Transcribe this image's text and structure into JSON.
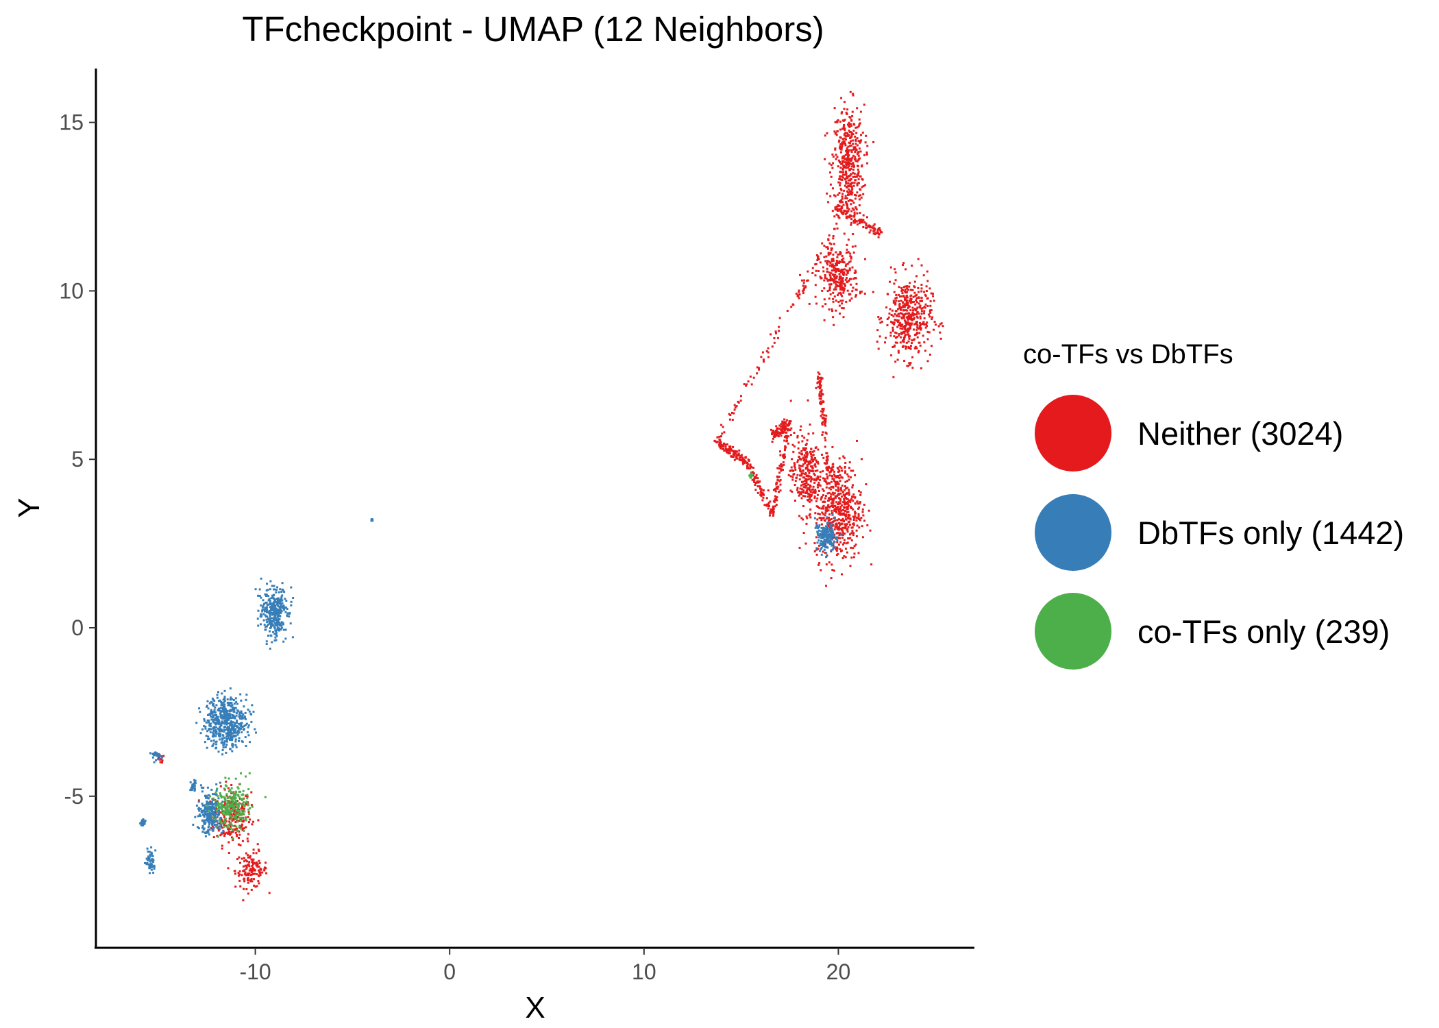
{
  "chart_data": {
    "type": "scatter",
    "title": "TFcheckpoint - UMAP (12 Neighbors)",
    "xlabel": "X",
    "ylabel": "Y",
    "xlim": [
      -18.2,
      27.0
    ],
    "ylim": [
      -9.5,
      16.6
    ],
    "xticks": [
      -10,
      0,
      10,
      20
    ],
    "yticks": [
      -5,
      0,
      5,
      10,
      15
    ],
    "xtick_labels": [
      "-10",
      "0",
      "10",
      "20"
    ],
    "ytick_labels": [
      "-5",
      "0",
      "5",
      "10",
      "15"
    ],
    "grid": false,
    "legend": {
      "title": "co-TFs vs DbTFs",
      "position": "right",
      "entries": [
        "Neither (3024)",
        "DbTFs only (1442)",
        "co-TFs only (239)"
      ]
    },
    "series": [
      {
        "name": "Neither (3024)",
        "color": "#e41a1c",
        "count": 3024,
        "clusters": [
          {
            "center": [
              -11.2,
              -5.6
            ],
            "spread": [
              0.65,
              0.55
            ]
          },
          {
            "center": [
              -10.2,
              -7.2
            ],
            "spread": [
              0.55,
              0.35
            ]
          },
          {
            "center": [
              -14.9,
              -3.9
            ],
            "spread": [
              0.15,
              0.08
            ]
          },
          {
            "center": [
              20.5,
              13.7
            ],
            "spread": [
              0.55,
              1.2
            ]
          },
          {
            "center": [
              20.0,
              10.4
            ],
            "spread": [
              0.7,
              0.6
            ]
          },
          {
            "center": [
              23.6,
              9.2
            ],
            "spread": [
              0.8,
              0.8
            ]
          },
          {
            "center": [
              20.0,
              3.5
            ],
            "spread": [
              0.8,
              1.0
            ]
          },
          {
            "center": [
              18.3,
              4.6
            ],
            "spread": [
              0.5,
              0.8
            ]
          }
        ],
        "curves": [
          {
            "from": [
              13.7,
              5.5
            ],
            "to": [
              15.2,
              5.0
            ]
          },
          {
            "from": [
              15.2,
              5.0
            ],
            "to": [
              16.6,
              3.4
            ]
          },
          {
            "from": [
              16.6,
              3.4
            ],
            "to": [
              17.5,
              6.1
            ]
          },
          {
            "from": [
              17.5,
              6.1
            ],
            "to": [
              16.6,
              5.7
            ]
          },
          {
            "from": [
              13.7,
              5.5
            ],
            "to": [
              20.0,
              12.0
            ]
          },
          {
            "from": [
              19.0,
              7.6
            ],
            "to": [
              19.5,
              4.5
            ]
          },
          {
            "from": [
              19.8,
              12.5
            ],
            "to": [
              22.2,
              11.7
            ]
          }
        ]
      },
      {
        "name": "DbTFs only (1442)",
        "color": "#377eb8",
        "count": 1442,
        "clusters": [
          {
            "center": [
              -9.0,
              0.4
            ],
            "spread": [
              0.45,
              0.5
            ]
          },
          {
            "center": [
              -11.5,
              -2.8
            ],
            "spread": [
              0.7,
              0.5
            ]
          },
          {
            "center": [
              -15.4,
              -6.9
            ],
            "spread": [
              0.15,
              0.25
            ]
          },
          {
            "center": [
              -15.8,
              -5.8
            ],
            "spread": [
              0.08,
              0.06
            ]
          },
          {
            "center": [
              -12.3,
              -5.5
            ],
            "spread": [
              0.4,
              0.4
            ]
          },
          {
            "center": [
              -15.1,
              -3.8
            ],
            "spread": [
              0.15,
              0.1
            ]
          },
          {
            "center": [
              -13.2,
              -4.7
            ],
            "spread": [
              0.1,
              0.1
            ]
          },
          {
            "center": [
              19.4,
              2.7
            ],
            "spread": [
              0.4,
              0.3
            ]
          },
          {
            "center": [
              -4.0,
              3.2
            ],
            "spread": [
              0.02,
              0.02
            ]
          }
        ]
      },
      {
        "name": "co-TFs only (239)",
        "color": "#4daf4a",
        "count": 239,
        "clusters": [
          {
            "center": [
              -11.2,
              -5.3
            ],
            "spread": [
              0.6,
              0.45
            ]
          },
          {
            "center": [
              15.5,
              4.5
            ],
            "spread": [
              0.05,
              0.05
            ]
          }
        ]
      }
    ]
  }
}
